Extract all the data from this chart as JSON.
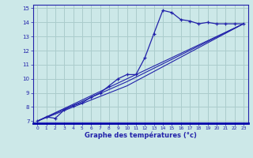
{
  "xlabel": "Graphe des températures (°c)",
  "bg_color": "#cce8e8",
  "grid_color": "#aacccc",
  "line_color": "#2222aa",
  "xlim": [
    -0.5,
    23.5
  ],
  "ylim": [
    6.85,
    15.25
  ],
  "yticks": [
    7,
    8,
    9,
    10,
    11,
    12,
    13,
    14,
    15
  ],
  "xticks": [
    0,
    1,
    2,
    3,
    4,
    5,
    6,
    7,
    8,
    9,
    10,
    11,
    12,
    13,
    14,
    15,
    16,
    17,
    18,
    19,
    20,
    21,
    22,
    23
  ],
  "series1_x": [
    0,
    1,
    2,
    3,
    4,
    5,
    6,
    7,
    8,
    9,
    10,
    11,
    12,
    13,
    14,
    15,
    16,
    17,
    18,
    19,
    20,
    21,
    22,
    23
  ],
  "series1_y": [
    7.0,
    7.3,
    7.2,
    7.8,
    8.1,
    8.3,
    8.7,
    9.0,
    9.5,
    10.0,
    10.3,
    10.3,
    11.5,
    13.2,
    14.85,
    14.7,
    14.2,
    14.1,
    13.9,
    14.0,
    13.9,
    13.9,
    13.9,
    13.9
  ],
  "trend1_x": [
    0,
    23
  ],
  "trend1_y": [
    7.0,
    13.9
  ],
  "trend2_x": [
    0,
    10,
    23
  ],
  "trend2_y": [
    7.0,
    9.5,
    13.9
  ],
  "trend3_x": [
    0,
    10,
    23
  ],
  "trend3_y": [
    7.0,
    9.8,
    13.9
  ]
}
